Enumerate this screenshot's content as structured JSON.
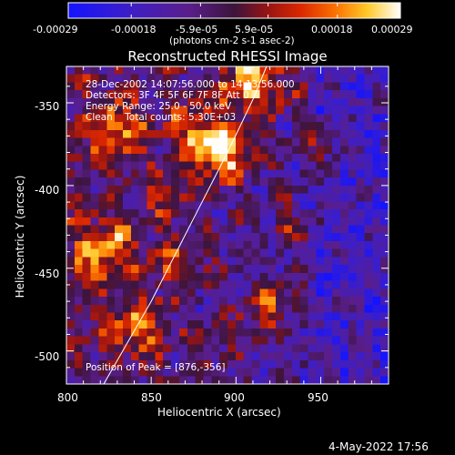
{
  "chart_data": {
    "type": "heatmap",
    "title": "Reconstructed RHESSI Image",
    "xlabel": "Heliocentric X (arcsec)",
    "ylabel": "Heliocentric Y (arcsec)",
    "xlim": [
      800,
      990
    ],
    "ylim": [
      -520,
      -328
    ],
    "x_ticks": [
      800,
      850,
      900,
      950
    ],
    "y_ticks": [
      -350,
      -400,
      -450,
      -500
    ],
    "x_tick_labels": [
      "800",
      "850",
      "900",
      "950"
    ],
    "y_tick_labels": [
      "-350",
      "-400",
      "-450",
      "-500"
    ],
    "colorbar": {
      "vmin": -0.00029,
      "vmax": 0.00029,
      "ticks": [
        -0.00029,
        -0.00018,
        -5.9e-05,
        5.9e-05,
        0.00018,
        0.00029
      ],
      "tick_labels": [
        "-0.00029",
        "-0.00018",
        "-5.9e-05",
        "5.9e-05",
        "0.00018",
        "0.00029"
      ],
      "units_label": "(photons cm-2 s-1 asec-2)"
    },
    "annotations": [
      "28-Dec-2002 14:07:56.000 to 14:13:56.000",
      "Detectors: 3F 4F 5F 6F 7F 8F Att 0",
      "Energy Range: 25.0 - 50.0 keV",
      "Clean    Total counts: 5.30E+03",
      "Position of Peak = [876,-356]"
    ],
    "peak_position": [
      876,
      -356
    ],
    "limb_curve": [
      [
        822,
        -520
      ],
      [
        850,
        -470
      ],
      [
        875,
        -420
      ],
      [
        895,
        -380
      ],
      [
        910,
        -348
      ],
      [
        918,
        -328
      ]
    ],
    "grid": false,
    "colormap": "rainbow-hot"
  },
  "footer": {
    "date": "4-May-2022 17:56"
  },
  "colors": {
    "background": "#000000",
    "text": "#ffffff",
    "limb_line": "#ffffff"
  }
}
